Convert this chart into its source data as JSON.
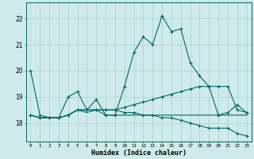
{
  "title": "",
  "xlabel": "Humidex (Indice chaleur)",
  "ylabel": "",
  "bg_color": "#ceeaea",
  "grid_color": "#add0d0",
  "line_color": "#006666",
  "x": [
    0,
    1,
    2,
    3,
    4,
    5,
    6,
    7,
    8,
    9,
    10,
    11,
    12,
    13,
    14,
    15,
    16,
    17,
    18,
    19,
    20,
    21,
    22,
    23
  ],
  "series1": [
    20.0,
    18.3,
    18.2,
    18.2,
    19.0,
    19.2,
    18.5,
    18.9,
    18.3,
    18.3,
    19.4,
    20.7,
    21.3,
    21.0,
    22.1,
    21.5,
    21.6,
    20.3,
    19.8,
    19.4,
    18.3,
    18.4,
    18.7,
    18.4
  ],
  "series2": [
    18.3,
    18.2,
    18.2,
    18.2,
    18.3,
    18.5,
    18.5,
    18.5,
    18.5,
    18.5,
    18.6,
    18.7,
    18.8,
    18.9,
    19.0,
    19.1,
    19.2,
    19.3,
    19.4,
    19.4,
    19.4,
    19.4,
    18.5,
    18.4
  ],
  "series3": [
    18.3,
    18.2,
    18.2,
    18.2,
    18.3,
    18.5,
    18.5,
    18.5,
    18.5,
    18.5,
    18.4,
    18.4,
    18.3,
    18.3,
    18.2,
    18.2,
    18.1,
    18.0,
    17.9,
    17.8,
    17.8,
    17.8,
    17.6,
    17.5
  ],
  "series4": [
    18.3,
    18.2,
    18.2,
    18.2,
    18.3,
    18.5,
    18.4,
    18.5,
    18.3,
    18.3,
    18.3,
    18.3,
    18.3,
    18.3,
    18.3,
    18.3,
    18.3,
    18.3,
    18.3,
    18.3,
    18.3,
    18.3,
    18.3,
    18.3
  ],
  "ylim": [
    17.3,
    22.6
  ],
  "yticks": [
    18,
    19,
    20,
    21,
    22
  ],
  "xticks": [
    0,
    1,
    2,
    3,
    4,
    5,
    6,
    7,
    8,
    9,
    10,
    11,
    12,
    13,
    14,
    15,
    16,
    17,
    18,
    19,
    20,
    21,
    22,
    23
  ]
}
